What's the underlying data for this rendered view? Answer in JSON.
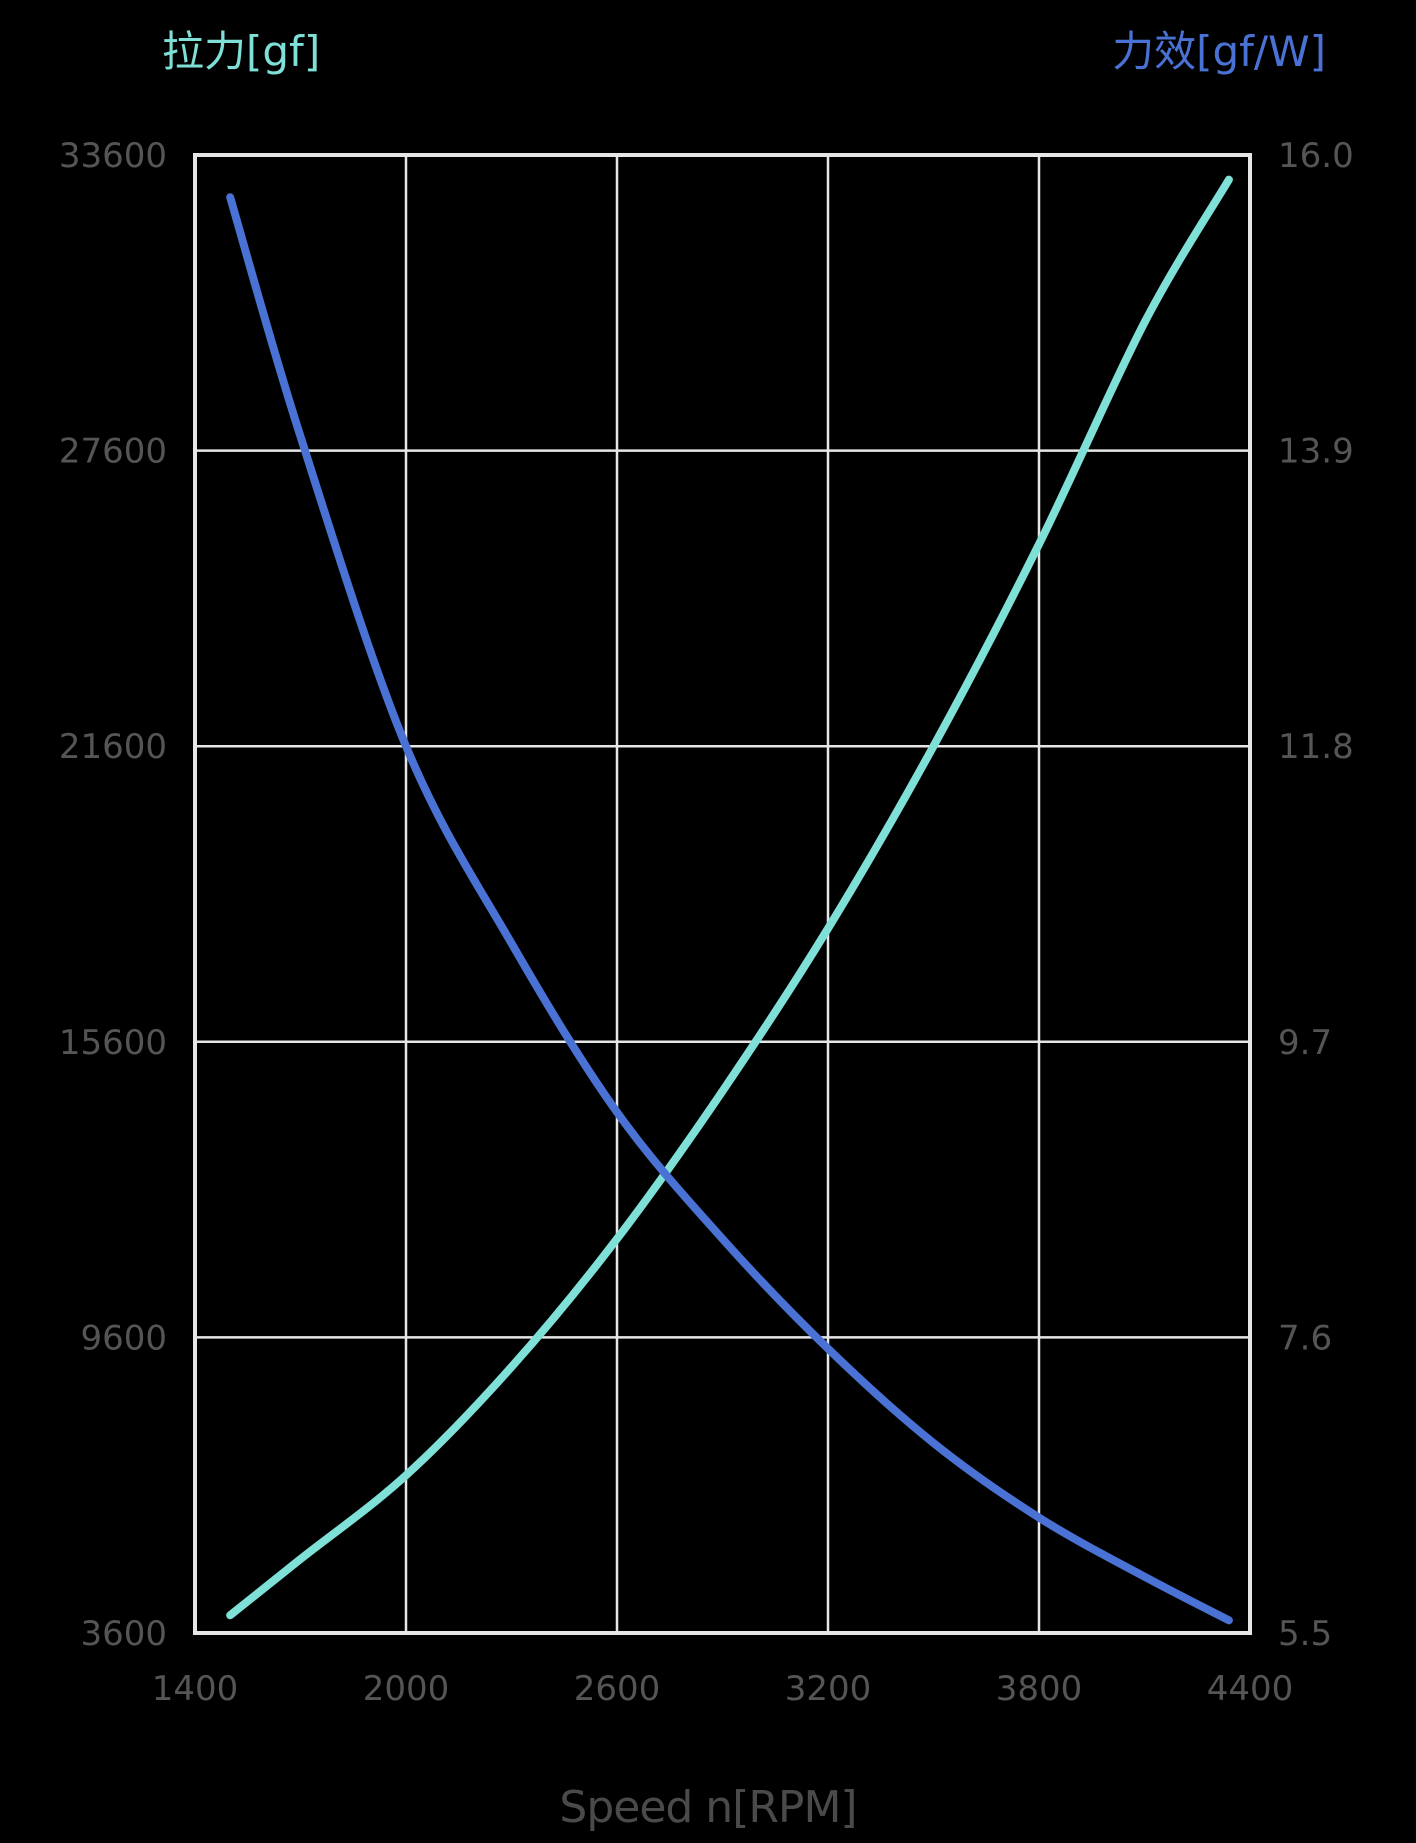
{
  "chart_data": {
    "type": "line",
    "title": "",
    "xlabel": "Speed n[RPM]",
    "ylabel_left": "拉力[gf]",
    "ylabel_right": "力效[gf/W]",
    "xlim": [
      1400,
      4400
    ],
    "ylim_left": [
      3600,
      33600
    ],
    "ylim_right": [
      5.5,
      16.0
    ],
    "x_ticks": [
      "1400",
      "2000",
      "2600",
      "3200",
      "3800",
      "4400"
    ],
    "y_ticks_left": [
      "3600",
      "9600",
      "15600",
      "21600",
      "27600",
      "33600"
    ],
    "y_ticks_right": [
      "5.5",
      "7.6",
      "9.7",
      "11.8",
      "13.9",
      "16.0"
    ],
    "grid": true,
    "legend": "none (axis titles colored per series)",
    "series": [
      {
        "name": "拉力[gf]",
        "axis": "left",
        "color": "#7fe0d8",
        "x": [
          1500,
          1700,
          2000,
          2300,
          2600,
          2900,
          3200,
          3500,
          3800,
          4100,
          4340
        ],
        "values": [
          3960,
          5100,
          6800,
          9000,
          11600,
          14600,
          17900,
          21600,
          25700,
          30200,
          33100
        ]
      },
      {
        "name": "力效[gf/W]",
        "axis": "right",
        "color": "#4a72d4",
        "x": [
          1500,
          1700,
          2000,
          2300,
          2600,
          2900,
          3200,
          3500,
          3800,
          4100,
          4340
        ],
        "values": [
          15.7,
          14.0,
          11.8,
          10.4,
          9.2,
          8.3,
          7.52,
          6.85,
          6.32,
          5.9,
          5.59
        ]
      }
    ]
  },
  "labels": {
    "left_axis_title": "拉力[gf]",
    "right_axis_title": "力效[gf/W]",
    "x_axis_title": "Speed n[RPM]"
  },
  "colors": {
    "background": "#000000",
    "grid": "#e6e6e6",
    "tick_text": "#555555",
    "thrust": "#7fe0d8",
    "efficiency": "#4a72d4"
  }
}
